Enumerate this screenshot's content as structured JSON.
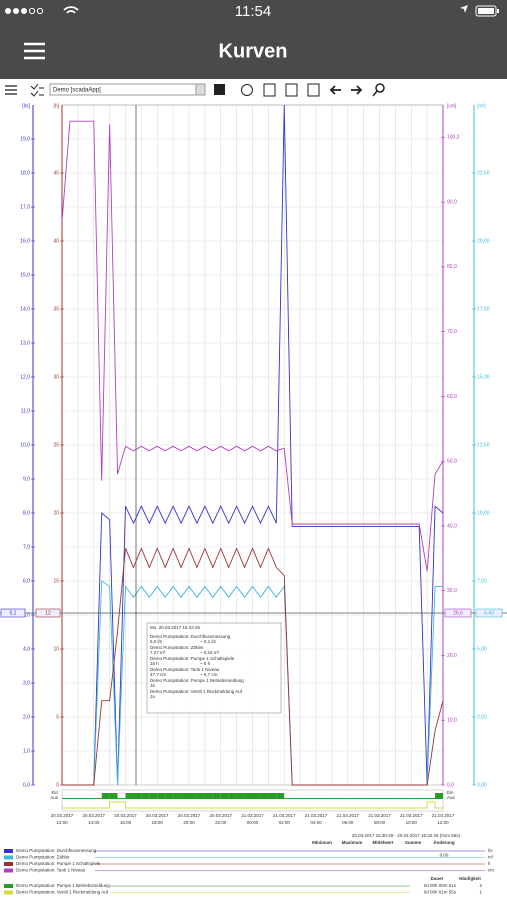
{
  "status": {
    "time": "11:54"
  },
  "header": {
    "title": "Kurven"
  },
  "toolbar": {
    "select": "Demo [scadaApp]"
  },
  "chart_data": {
    "type": "line",
    "grid": true,
    "ylabel": "[l/s]",
    "y3label": "[h]",
    "y2label": "[cm]",
    "y4label": "[m³]",
    "categories": [
      "20.03.2017 12:00",
      null,
      null,
      null,
      "20.03.2017 14:00",
      null,
      null,
      null,
      "20.03.2017 16:00",
      null,
      null,
      null,
      "20.03.2017 18:00",
      null,
      null,
      null,
      "20.03.2017 20:00",
      null,
      null,
      null,
      "20.03.2017 22:00",
      null,
      null,
      null,
      "21.03.2017 00:00",
      null,
      null,
      null,
      "21.03.2017 02:00",
      null,
      null,
      null,
      "21.03.2017 04:00",
      null,
      null,
      null,
      "21.03.2017 06:00",
      null,
      null,
      null,
      "21.03.2017 08:00",
      null,
      null,
      null,
      "21.03.2017 10:00",
      null,
      null,
      null,
      "21.03.2017 12:00"
    ],
    "series": [
      {
        "name": "Demo Pumpstation: Durchflussmessung",
        "color": "#3333cc",
        "axis": "y",
        "values": [
          0,
          0,
          0,
          0,
          0,
          8.0,
          7.8,
          0,
          8.2,
          7.7,
          8.2,
          7.7,
          8.2,
          7.7,
          8.2,
          7.7,
          8.2,
          7.7,
          8.2,
          7.7,
          8.2,
          7.7,
          8.2,
          7.7,
          8.2,
          7.7,
          8.2,
          7.7,
          20,
          7.6,
          7.6,
          7.6,
          7.6,
          7.6,
          7.6,
          7.6,
          7.6,
          7.6,
          7.6,
          7.6,
          7.6,
          7.6,
          7.6,
          7.6,
          7.6,
          7.6,
          0,
          8.2,
          8.0
        ]
      },
      {
        "name": "Demo Pumpstation: Zähler",
        "color": "#40b8d8",
        "axis": "y4",
        "values": [
          0,
          0,
          0,
          0,
          0,
          7.5,
          7.3,
          0,
          7.3,
          6.9,
          7.3,
          6.9,
          7.3,
          6.9,
          7.3,
          6.9,
          7.3,
          6.9,
          7.3,
          6.9,
          7.3,
          6.9,
          7.3,
          6.9,
          7.3,
          6.9,
          7.3,
          6.9,
          7.3,
          0,
          0,
          0,
          0,
          0,
          0,
          0,
          0,
          0,
          0,
          0,
          0,
          0,
          0,
          0,
          0,
          0,
          0,
          7.3,
          7.3
        ]
      },
      {
        "name": "Demo Pumpstation: Pumpe 1 Schaltspiele",
        "color": "#993333",
        "axis": "y3",
        "values": [
          0,
          0,
          0,
          0,
          0,
          6.2,
          6.2,
          11.3,
          17.4,
          16,
          17.4,
          16,
          17.4,
          16,
          17.4,
          16,
          17.4,
          16,
          17.4,
          16,
          17.4,
          16,
          17.4,
          16,
          17.4,
          16,
          17.4,
          16,
          15.4,
          0,
          0,
          0,
          0,
          0,
          0,
          0,
          0,
          0,
          0,
          0,
          0,
          0,
          0,
          0,
          0,
          0,
          0,
          4,
          6.2
        ]
      },
      {
        "name": "Demo Pumpstation: Tank 1 Niveau",
        "color": "#b040c0",
        "axis": "y2",
        "values": [
          87,
          102.5,
          102.5,
          102.5,
          102.5,
          47,
          102,
          48,
          52.3,
          51.6,
          52.3,
          51.6,
          52.3,
          51.6,
          52.3,
          51.6,
          52.3,
          51.6,
          52.3,
          51.6,
          52.3,
          51.6,
          52.3,
          51.6,
          52.3,
          51.6,
          52.3,
          51.6,
          52,
          40.3,
          40.3,
          40.3,
          40.3,
          40.3,
          40.3,
          40.3,
          40.3,
          40.3,
          40.3,
          40.3,
          40.3,
          40.3,
          40.3,
          40.3,
          40.3,
          40.3,
          33,
          48,
          50
        ]
      }
    ],
    "binary_series": [
      {
        "name": "Demo Pumpstation: Pumpe 1 Betriebsmeldung",
        "color": "#2a9a2a",
        "values": [
          0,
          0,
          0,
          0,
          0,
          1,
          1,
          0,
          1,
          1,
          1,
          1,
          1,
          1,
          1,
          1,
          1,
          1,
          1,
          1,
          1,
          1,
          1,
          1,
          1,
          1,
          1,
          1,
          0,
          0,
          0,
          0,
          0,
          0,
          0,
          0,
          0,
          0,
          0,
          0,
          0,
          0,
          0,
          0,
          0,
          0,
          0,
          1,
          1
        ]
      },
      {
        "name": "Demo Pumpstation: Ventil 1 Rückmeldung Auf",
        "color": "#d8d840",
        "values": [
          0,
          0,
          0,
          0,
          0,
          0,
          1,
          1,
          0,
          0,
          0,
          0,
          0,
          0,
          0,
          0,
          0,
          0,
          0,
          0,
          0,
          0,
          0,
          0,
          0,
          0,
          0,
          0,
          0,
          0,
          0,
          0,
          0,
          0,
          0,
          0,
          0,
          0,
          0,
          0,
          0,
          0,
          0,
          0,
          0,
          0,
          1,
          0,
          0
        ]
      }
    ],
    "state_labels": [
      "Ein",
      "Aus"
    ],
    "ylim": [
      0,
      20
    ],
    "yticks": [
      {
        "value": 0,
        "label": "0,0"
      },
      {
        "value": 1,
        "label": "1,0"
      },
      {
        "value": 2,
        "label": "2,0"
      },
      {
        "value": 3,
        "label": "3,0"
      },
      {
        "value": 4,
        "label": "4,0"
      },
      {
        "value": 5,
        "label": "5,0"
      },
      {
        "value": 6,
        "label": "6,0"
      },
      {
        "value": 7,
        "label": "7,0"
      },
      {
        "value": 8,
        "label": "8,0"
      },
      {
        "value": 9,
        "label": "9,0"
      },
      {
        "value": 10,
        "label": "10,0"
      },
      {
        "value": 11,
        "label": "11,0"
      },
      {
        "value": 12,
        "label": "12,0"
      },
      {
        "value": 13,
        "label": "13,0"
      },
      {
        "value": 14,
        "label": "14,0"
      },
      {
        "value": 15,
        "label": "15,0"
      },
      {
        "value": 16,
        "label": "16,0"
      },
      {
        "value": 17,
        "label": "17,0"
      },
      {
        "value": 18,
        "label": "18,0"
      },
      {
        "value": 19,
        "label": "19,0"
      }
    ],
    "y3lim": [
      0,
      50
    ],
    "y3ticks": [
      0,
      5,
      10,
      15,
      20,
      25,
      30,
      35,
      40,
      45
    ],
    "y2lim": [
      0,
      105
    ],
    "y2ticks": [
      {
        "value": 0,
        "label": "0,0"
      },
      {
        "value": 10,
        "label": "10,0"
      },
      {
        "value": 20,
        "label": "20,0"
      },
      {
        "value": 30,
        "label": "30,0"
      },
      {
        "value": 40,
        "label": "40,0"
      },
      {
        "value": 50,
        "label": "50,0"
      },
      {
        "value": 60,
        "label": "60,0"
      },
      {
        "value": 70,
        "label": "70,0"
      },
      {
        "value": 80,
        "label": "80,0"
      },
      {
        "value": 90,
        "label": "90,0"
      },
      {
        "value": 100,
        "label": "100,0"
      }
    ],
    "y4lim": [
      0,
      25
    ],
    "y4ticks": [
      {
        "value": 0,
        "label": "0,00"
      },
      {
        "value": 2.5,
        "label": "2,50"
      },
      {
        "value": 5,
        "label": "5,00"
      },
      {
        "value": 7.5,
        "label": "7,50"
      },
      {
        "value": 10,
        "label": "10,00"
      },
      {
        "value": 12.5,
        "label": "12,50"
      },
      {
        "value": 15,
        "label": "15,00"
      },
      {
        "value": 17.5,
        "label": "17,50"
      },
      {
        "value": 20,
        "label": "20,00"
      },
      {
        "value": 22.5,
        "label": "22,50"
      }
    ]
  },
  "crosshair": {
    "left": [
      "5,1",
      "12"
    ],
    "right": [
      "26,6",
      "6,43"
    ]
  },
  "tooltip": {
    "time": "Mo. 20.03.2017 16:32:25",
    "rows": [
      {
        "name": "Demo Pumpstation: Durchflussmessung",
        "value": "8,0 l/s",
        "delta": "~ 0,1 l/s"
      },
      {
        "name": "Demo Pumpstation: Zähler",
        "value": "7,27 m³",
        "delta": "~ 0,16 m³"
      },
      {
        "name": "Demo Pumpstation: Pumpe 1 Schaltspiele",
        "value": "15 h",
        "delta": "~ 5 h"
      },
      {
        "name": "Demo Pumpstation: Tank 1 Niveau",
        "value": "47,7 cm",
        "delta": "~ 5,7 cm"
      },
      {
        "name": "Demo Pumpstation: Pumpe 1 Betriebsmeldung",
        "value": "Ja",
        "delta": null
      },
      {
        "name": "Demo Pumpstation: Ventil 1 Rückmeldung Auf",
        "value": "Ja",
        "delta": null
      }
    ]
  },
  "range": "20.03.2017 16:30:29 - 20.03.2017 16:32:25  (01m 55s)",
  "table": {
    "headers": [
      "Minimum",
      "Maximum",
      "Mittelwert",
      "Summe",
      "Änderung"
    ],
    "units": [
      "l/s",
      "m³",
      "h",
      "cm"
    ],
    "summe_zaehler": "0,00",
    "binary_headers": [
      "Dauer",
      "Häufigkeit"
    ],
    "binary_rows": [
      {
        "dauer": "0d 00h 00m 51s",
        "count": "2"
      },
      {
        "dauer": "0d 00h 01m 55s",
        "count": "1"
      }
    ]
  }
}
